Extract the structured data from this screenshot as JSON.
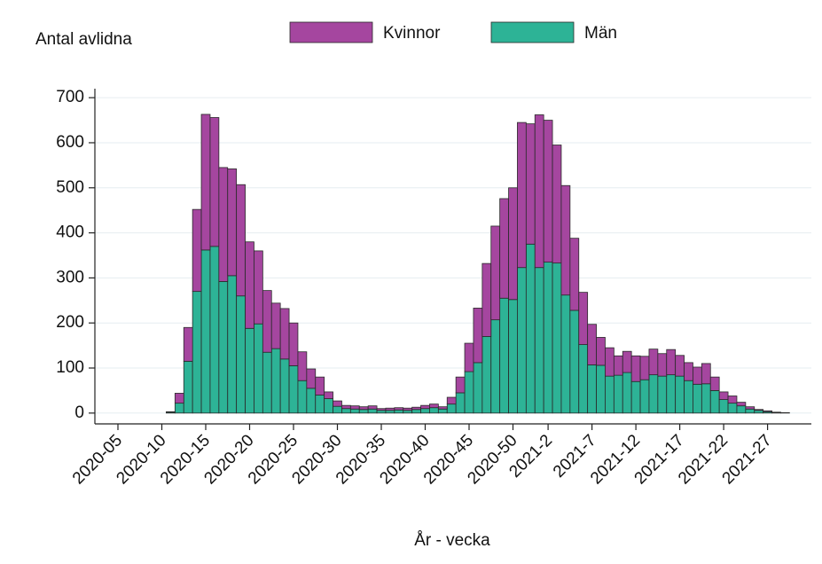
{
  "chart_data": {
    "type": "stacked_bar",
    "y_title": "Antal avlidna",
    "x_title": "År - vecka",
    "categories": [
      "2020-05",
      null,
      null,
      null,
      null,
      "2020-10",
      null,
      null,
      null,
      null,
      "2020-15",
      null,
      null,
      null,
      null,
      "2020-20",
      null,
      null,
      null,
      null,
      "2020-25",
      null,
      null,
      null,
      null,
      "2020-30",
      null,
      null,
      null,
      null,
      "2020-35",
      null,
      null,
      null,
      null,
      "2020-40",
      null,
      null,
      null,
      null,
      "2020-45",
      null,
      null,
      null,
      null,
      "2020-50",
      null,
      null,
      null,
      "2021-2",
      null,
      null,
      null,
      null,
      "2021-7",
      null,
      null,
      null,
      null,
      "2021-12",
      null,
      null,
      null,
      null,
      "2021-17",
      null,
      null,
      null,
      null,
      "2021-22",
      null,
      null,
      null,
      null,
      "2021-27",
      null,
      null
    ],
    "series": [
      {
        "name": "Män",
        "color": "#2db396",
        "values": [
          null,
          null,
          null,
          null,
          null,
          null,
          2,
          22,
          115,
          270,
          362,
          370,
          292,
          305,
          260,
          188,
          198,
          135,
          143,
          120,
          105,
          72,
          55,
          40,
          32,
          15,
          10,
          9,
          8,
          9,
          6,
          6,
          7,
          6,
          8,
          10,
          12,
          9,
          20,
          45,
          92,
          112,
          170,
          207,
          255,
          252,
          323,
          375,
          323,
          335,
          333,
          262,
          228,
          152,
          107,
          106,
          82,
          84,
          90,
          70,
          74,
          85,
          82,
          85,
          82,
          72,
          64,
          65,
          50,
          30,
          22,
          16,
          9,
          6,
          3,
          1,
          1
        ]
      },
      {
        "name": "Kvinnor",
        "color": "#a5469f",
        "values": [
          null,
          null,
          null,
          null,
          null,
          null,
          1,
          22,
          75,
          182,
          301,
          286,
          253,
          237,
          247,
          192,
          162,
          137,
          101,
          112,
          95,
          64,
          43,
          40,
          15,
          12,
          7,
          7,
          6,
          7,
          4,
          5,
          5,
          5,
          5,
          7,
          8,
          5,
          15,
          35,
          63,
          121,
          162,
          208,
          221,
          248,
          322,
          267,
          339,
          315,
          262,
          243,
          160,
          116,
          90,
          62,
          63,
          43,
          47,
          57,
          52,
          57,
          50,
          56,
          46,
          40,
          38,
          45,
          30,
          17,
          16,
          8,
          5,
          2,
          2,
          1,
          0
        ]
      }
    ],
    "legend_order": [
      1,
      0
    ],
    "ylim": [
      -24,
      720
    ],
    "yticks": [
      0,
      100,
      200,
      300,
      400,
      500,
      600,
      700
    ],
    "grid": true
  }
}
